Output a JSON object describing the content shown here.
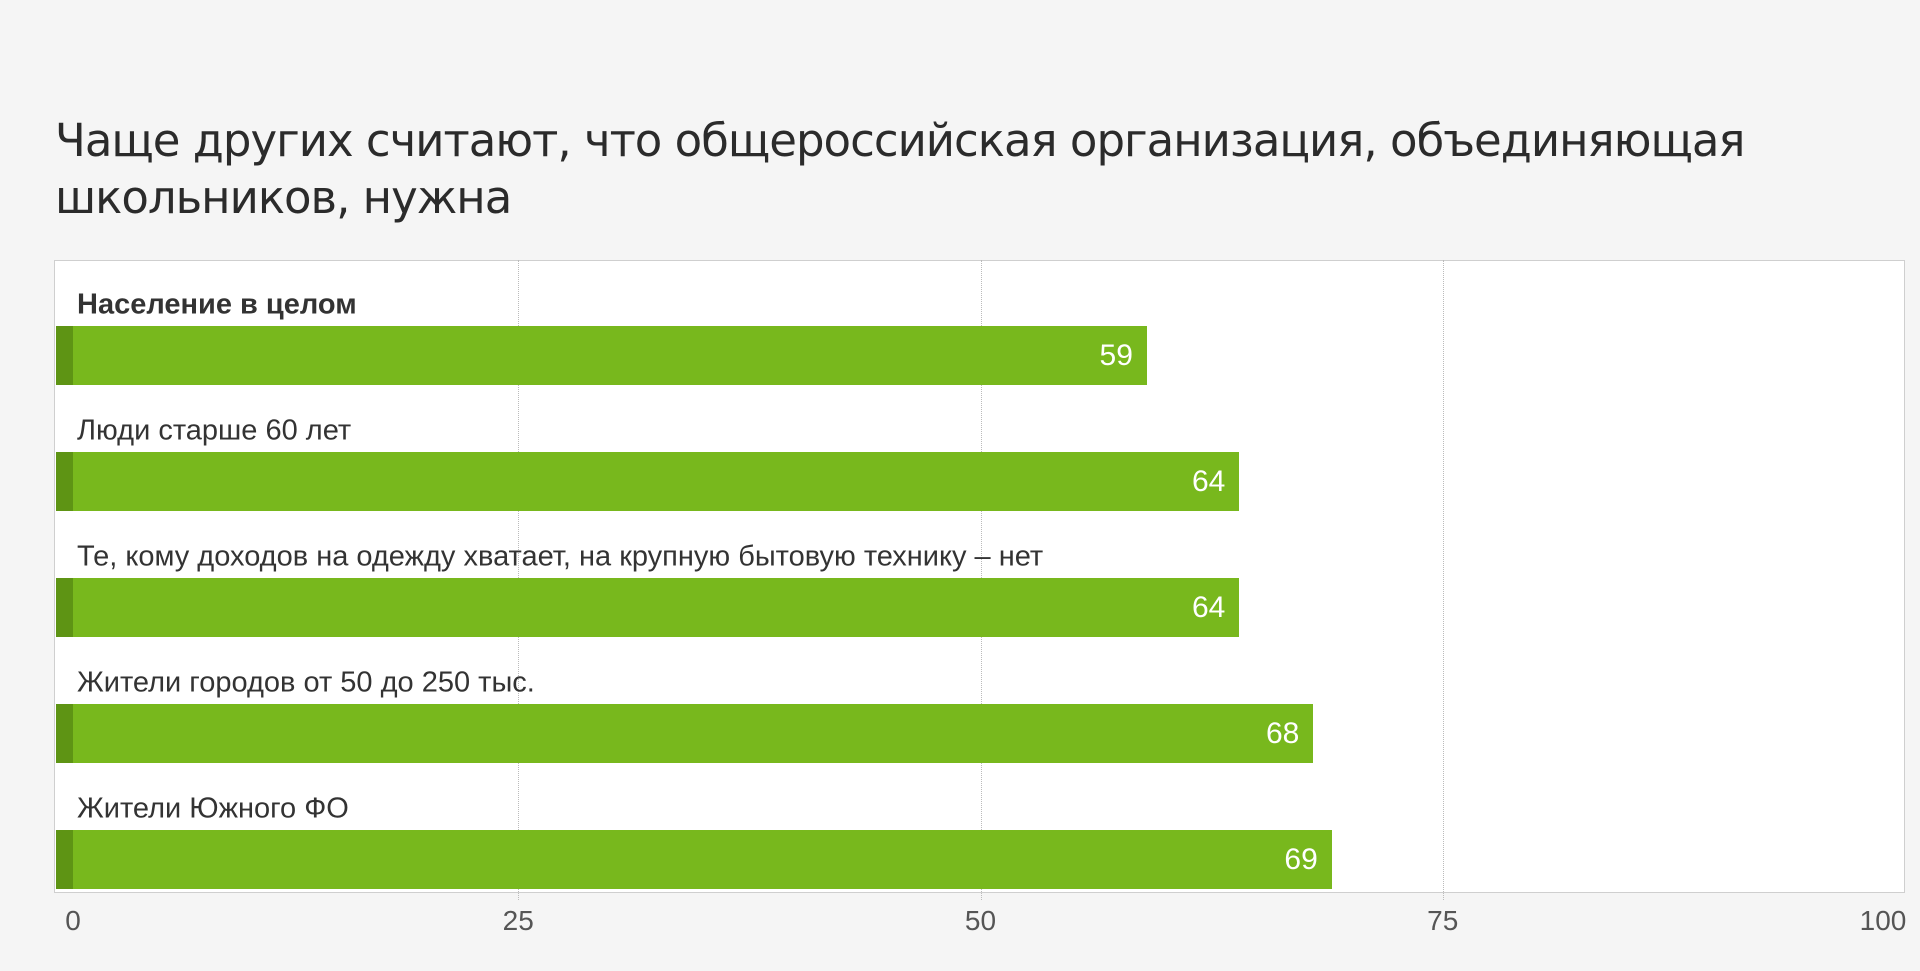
{
  "chart_data": {
    "type": "bar",
    "orientation": "horizontal",
    "title": "Чаще других считают, что общероссийская организация, объединяющая школьников, нужна",
    "categories": [
      "Население в целом",
      "Люди старше 60 лет",
      "Те, кому доходов на одежду хватает, на крупную бытовую технику – нет",
      "Жители городов от 50 до 250 тыс.",
      "Жители Южного ФО"
    ],
    "values": [
      59,
      64,
      64,
      68,
      69
    ],
    "xlim": [
      0,
      100
    ],
    "xticks": [
      "0",
      "25",
      "50",
      "75",
      "100"
    ],
    "tick_values": [
      0,
      25,
      50,
      75,
      100
    ],
    "grid": true,
    "bar_color": "#78b81d",
    "accent_color": "#5e9414",
    "xlabel": "",
    "ylabel": ""
  }
}
